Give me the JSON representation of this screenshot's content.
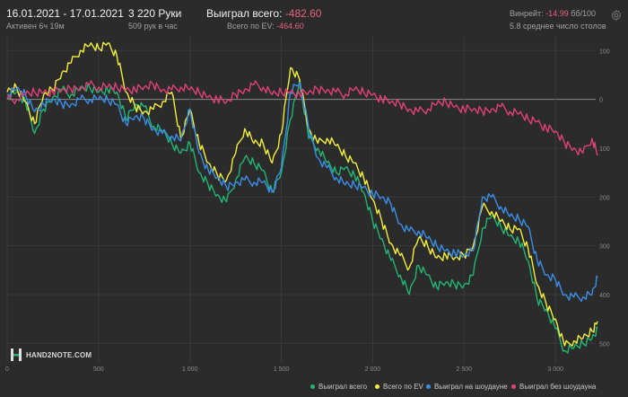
{
  "header": {
    "date_range": "16.01.2021 - 17.01.2021",
    "active": "Активен 6ч 19м",
    "hands": "3 220 Руки",
    "hands_rate": "509 рук в час",
    "won_label": "Выиграл всего:",
    "won_value": "-482.60",
    "ev_label": "Всего по EV:",
    "ev_value": "-464.60",
    "winrate_label": "Винрейт:",
    "winrate_value": "-14.99",
    "winrate_suffix": "бб/100",
    "tables": "5.8 среднее число столов"
  },
  "logo": {
    "text": "HAND2NOTE.COM"
  },
  "legend": [
    {
      "label": "Выиграл всего",
      "color": "#22b574"
    },
    {
      "label": "Всего по EV",
      "color": "#f2ee3c"
    },
    {
      "label": "Выиграл на шоудауне",
      "color": "#3a8ee6"
    },
    {
      "label": "Выиграл без шоудауна",
      "color": "#e0407a"
    }
  ],
  "colors": {
    "background": "#2b2b2b",
    "grid": "#3a3a3a",
    "zero_line": "#8a8a8a",
    "negative": "#e8607e"
  },
  "chart_data": {
    "type": "line",
    "xlim": [
      0,
      3220
    ],
    "ylim": [
      -540,
      130
    ],
    "x_ticks": [
      0,
      500,
      1000,
      1500,
      2000,
      2500,
      3000
    ],
    "x_tick_labels": [
      "0",
      "500",
      "1 000",
      "1 500",
      "2 000",
      "2 500",
      "3 000"
    ],
    "y_ticks": [
      100,
      0,
      -100,
      -200,
      -300,
      -400,
      -500
    ],
    "y_tick_labels": [
      "100",
      "0",
      "100",
      "200",
      "300",
      "400",
      "500"
    ],
    "grid": true,
    "legend_position": "bottom-right",
    "series": [
      {
        "name": "Выиграл всего",
        "color": "#22b574",
        "points": [
          [
            0,
            5
          ],
          [
            50,
            15
          ],
          [
            100,
            -5
          ],
          [
            150,
            -70
          ],
          [
            200,
            -20
          ],
          [
            250,
            5
          ],
          [
            300,
            20
          ],
          [
            350,
            10
          ],
          [
            400,
            20
          ],
          [
            450,
            25
          ],
          [
            500,
            15
          ],
          [
            550,
            20
          ],
          [
            600,
            15
          ],
          [
            650,
            -40
          ],
          [
            700,
            -10
          ],
          [
            750,
            -15
          ],
          [
            800,
            -55
          ],
          [
            850,
            -65
          ],
          [
            900,
            -90
          ],
          [
            950,
            -110
          ],
          [
            1000,
            -90
          ],
          [
            1050,
            -150
          ],
          [
            1100,
            -175
          ],
          [
            1150,
            -195
          ],
          [
            1200,
            -210
          ],
          [
            1250,
            -165
          ],
          [
            1300,
            -120
          ],
          [
            1350,
            -130
          ],
          [
            1400,
            -145
          ],
          [
            1450,
            -190
          ],
          [
            1500,
            -150
          ],
          [
            1550,
            -40
          ],
          [
            1600,
            40
          ],
          [
            1650,
            -80
          ],
          [
            1700,
            -100
          ],
          [
            1750,
            -130
          ],
          [
            1800,
            -150
          ],
          [
            1850,
            -140
          ],
          [
            1900,
            -155
          ],
          [
            1950,
            -190
          ],
          [
            2000,
            -250
          ],
          [
            2050,
            -285
          ],
          [
            2100,
            -330
          ],
          [
            2150,
            -360
          ],
          [
            2200,
            -400
          ],
          [
            2250,
            -340
          ],
          [
            2300,
            -360
          ],
          [
            2350,
            -385
          ],
          [
            2400,
            -375
          ],
          [
            2450,
            -380
          ],
          [
            2500,
            -380
          ],
          [
            2550,
            -360
          ],
          [
            2600,
            -265
          ],
          [
            2650,
            -240
          ],
          [
            2700,
            -260
          ],
          [
            2750,
            -280
          ],
          [
            2800,
            -290
          ],
          [
            2850,
            -330
          ],
          [
            2900,
            -410
          ],
          [
            2950,
            -430
          ],
          [
            3000,
            -470
          ],
          [
            3050,
            -515
          ],
          [
            3100,
            -510
          ],
          [
            3150,
            -500
          ],
          [
            3200,
            -490
          ],
          [
            3230,
            -470
          ]
        ]
      },
      {
        "name": "Всего по EV",
        "color": "#f2ee3c",
        "points": [
          [
            0,
            15
          ],
          [
            50,
            25
          ],
          [
            100,
            -5
          ],
          [
            150,
            -50
          ],
          [
            200,
            10
          ],
          [
            250,
            20
          ],
          [
            300,
            55
          ],
          [
            350,
            75
          ],
          [
            400,
            100
          ],
          [
            450,
            110
          ],
          [
            500,
            105
          ],
          [
            550,
            115
          ],
          [
            600,
            90
          ],
          [
            650,
            15
          ],
          [
            700,
            -15
          ],
          [
            750,
            -25
          ],
          [
            800,
            -20
          ],
          [
            850,
            -5
          ],
          [
            900,
            15
          ],
          [
            950,
            -80
          ],
          [
            1000,
            -20
          ],
          [
            1050,
            -90
          ],
          [
            1100,
            -130
          ],
          [
            1150,
            -155
          ],
          [
            1200,
            -165
          ],
          [
            1250,
            -110
          ],
          [
            1300,
            -60
          ],
          [
            1350,
            -90
          ],
          [
            1400,
            -90
          ],
          [
            1450,
            -130
          ],
          [
            1500,
            -70
          ],
          [
            1550,
            65
          ],
          [
            1600,
            40
          ],
          [
            1650,
            -60
          ],
          [
            1700,
            -90
          ],
          [
            1750,
            -80
          ],
          [
            1800,
            -95
          ],
          [
            1850,
            -115
          ],
          [
            1900,
            -130
          ],
          [
            1950,
            -160
          ],
          [
            2000,
            -205
          ],
          [
            2050,
            -250
          ],
          [
            2100,
            -295
          ],
          [
            2150,
            -320
          ],
          [
            2200,
            -345
          ],
          [
            2250,
            -285
          ],
          [
            2300,
            -300
          ],
          [
            2350,
            -325
          ],
          [
            2400,
            -320
          ],
          [
            2450,
            -325
          ],
          [
            2500,
            -320
          ],
          [
            2550,
            -300
          ],
          [
            2600,
            -220
          ],
          [
            2650,
            -230
          ],
          [
            2700,
            -250
          ],
          [
            2750,
            -265
          ],
          [
            2800,
            -265
          ],
          [
            2850,
            -305
          ],
          [
            2900,
            -380
          ],
          [
            2950,
            -420
          ],
          [
            3000,
            -450
          ],
          [
            3050,
            -505
          ],
          [
            3100,
            -495
          ],
          [
            3150,
            -490
          ],
          [
            3200,
            -475
          ],
          [
            3230,
            -455
          ]
        ]
      },
      {
        "name": "Выиграл на шоудауне",
        "color": "#3a8ee6",
        "points": [
          [
            0,
            10
          ],
          [
            50,
            20
          ],
          [
            100,
            10
          ],
          [
            150,
            -25
          ],
          [
            200,
            -10
          ],
          [
            250,
            0
          ],
          [
            300,
            -10
          ],
          [
            350,
            -10
          ],
          [
            400,
            0
          ],
          [
            450,
            0
          ],
          [
            500,
            0
          ],
          [
            550,
            0
          ],
          [
            600,
            -10
          ],
          [
            650,
            -50
          ],
          [
            700,
            -35
          ],
          [
            750,
            -40
          ],
          [
            800,
            -60
          ],
          [
            850,
            -70
          ],
          [
            900,
            -75
          ],
          [
            950,
            -85
          ],
          [
            1000,
            -20
          ],
          [
            1050,
            -110
          ],
          [
            1100,
            -145
          ],
          [
            1150,
            -160
          ],
          [
            1200,
            -180
          ],
          [
            1250,
            -170
          ],
          [
            1300,
            -165
          ],
          [
            1350,
            -170
          ],
          [
            1400,
            -170
          ],
          [
            1450,
            -190
          ],
          [
            1500,
            -140
          ],
          [
            1550,
            15
          ],
          [
            1600,
            35
          ],
          [
            1650,
            -60
          ],
          [
            1700,
            -120
          ],
          [
            1750,
            -140
          ],
          [
            1800,
            -160
          ],
          [
            1850,
            -175
          ],
          [
            1900,
            -175
          ],
          [
            1950,
            -180
          ],
          [
            2000,
            -195
          ],
          [
            2050,
            -200
          ],
          [
            2100,
            -215
          ],
          [
            2150,
            -255
          ],
          [
            2200,
            -270
          ],
          [
            2250,
            -270
          ],
          [
            2300,
            -285
          ],
          [
            2350,
            -300
          ],
          [
            2400,
            -310
          ],
          [
            2450,
            -315
          ],
          [
            2500,
            -320
          ],
          [
            2550,
            -310
          ],
          [
            2600,
            -200
          ],
          [
            2650,
            -200
          ],
          [
            2700,
            -220
          ],
          [
            2750,
            -240
          ],
          [
            2800,
            -245
          ],
          [
            2850,
            -260
          ],
          [
            2900,
            -330
          ],
          [
            2950,
            -360
          ],
          [
            3000,
            -370
          ],
          [
            3050,
            -400
          ],
          [
            3100,
            -405
          ],
          [
            3150,
            -405
          ],
          [
            3200,
            -400
          ],
          [
            3230,
            -365
          ]
        ]
      },
      {
        "name": "Выиграл без шоудауна",
        "color": "#e0407a",
        "points": [
          [
            0,
            0
          ],
          [
            50,
            0
          ],
          [
            100,
            10
          ],
          [
            150,
            15
          ],
          [
            200,
            15
          ],
          [
            250,
            15
          ],
          [
            300,
            20
          ],
          [
            350,
            20
          ],
          [
            400,
            25
          ],
          [
            450,
            30
          ],
          [
            500,
            25
          ],
          [
            550,
            25
          ],
          [
            600,
            25
          ],
          [
            650,
            20
          ],
          [
            700,
            20
          ],
          [
            750,
            25
          ],
          [
            800,
            30
          ],
          [
            850,
            20
          ],
          [
            900,
            20
          ],
          [
            950,
            25
          ],
          [
            1000,
            20
          ],
          [
            1050,
            15
          ],
          [
            1100,
            5
          ],
          [
            1150,
            0
          ],
          [
            1200,
            -5
          ],
          [
            1250,
            10
          ],
          [
            1300,
            20
          ],
          [
            1350,
            30
          ],
          [
            1400,
            25
          ],
          [
            1450,
            10
          ],
          [
            1500,
            15
          ],
          [
            1550,
            15
          ],
          [
            1600,
            10
          ],
          [
            1650,
            15
          ],
          [
            1700,
            20
          ],
          [
            1750,
            20
          ],
          [
            1800,
            15
          ],
          [
            1850,
            10
          ],
          [
            1900,
            20
          ],
          [
            1950,
            15
          ],
          [
            2000,
            10
          ],
          [
            2050,
            0
          ],
          [
            2100,
            -5
          ],
          [
            2150,
            -10
          ],
          [
            2200,
            -20
          ],
          [
            2250,
            -25
          ],
          [
            2300,
            -20
          ],
          [
            2350,
            -10
          ],
          [
            2400,
            -5
          ],
          [
            2450,
            -15
          ],
          [
            2500,
            -20
          ],
          [
            2550,
            -20
          ],
          [
            2600,
            -25
          ],
          [
            2650,
            -20
          ],
          [
            2700,
            -15
          ],
          [
            2750,
            -25
          ],
          [
            2800,
            -30
          ],
          [
            2850,
            -40
          ],
          [
            2900,
            -45
          ],
          [
            2950,
            -60
          ],
          [
            3000,
            -65
          ],
          [
            3050,
            -90
          ],
          [
            3100,
            -100
          ],
          [
            3150,
            -110
          ],
          [
            3200,
            -80
          ],
          [
            3230,
            -115
          ]
        ]
      }
    ]
  }
}
